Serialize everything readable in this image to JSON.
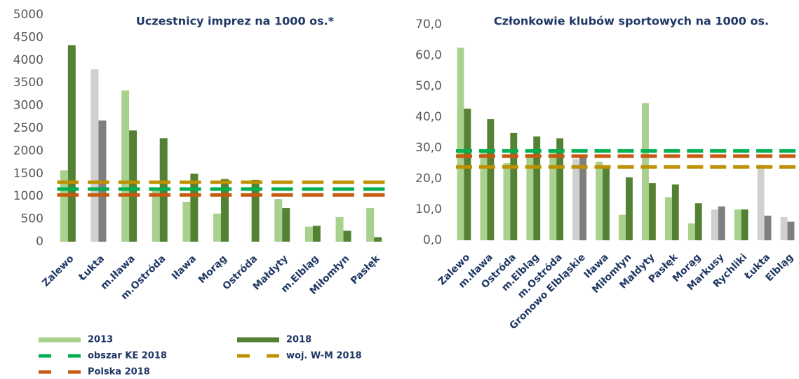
{
  "chart_data": [
    {
      "type": "bar",
      "title": "Uczestnicy imprez na 1000 os.*",
      "categories": [
        "Zalewo",
        "Łukta",
        "m.Iława",
        "m.Ostróda",
        "Iława",
        "Morąg",
        "Ostróda",
        "Małdyty",
        "m.Elbląg",
        "Miłomłyn",
        "Pasłęk"
      ],
      "series": [
        {
          "name": "2013",
          "color": "#a9d18e",
          "values": [
            1570,
            3800,
            3330,
            1170,
            880,
            620,
            null,
            940,
            330,
            540,
            740
          ],
          "colors": [
            "#a9d18e",
            "#d0d0d0",
            "#a9d18e",
            "#a9d18e",
            "#a9d18e",
            "#a9d18e",
            "#a9d18e",
            "#a9d18e",
            "#a9d18e",
            "#a9d18e",
            "#a9d18e"
          ]
        },
        {
          "name": "2018",
          "color": "#548235",
          "values": [
            4330,
            2670,
            2450,
            2280,
            1500,
            1380,
            1360,
            740,
            350,
            240,
            100
          ],
          "colors": [
            "#548235",
            "#7f7f7f",
            "#548235",
            "#548235",
            "#548235",
            "#548235",
            "#548235",
            "#548235",
            "#548235",
            "#548235",
            "#548235"
          ]
        }
      ],
      "reference_lines": [
        {
          "name": "obszar KE 2018",
          "color": "#00b050",
          "value": 1160
        },
        {
          "name": "woj. W-M 2018",
          "color": "#bf9000",
          "value": 1310
        },
        {
          "name": "Polska 2018",
          "color": "#c55a11",
          "value": 1030
        }
      ],
      "ylim": [
        0,
        5000
      ],
      "yticks": [
        0,
        500,
        1000,
        1500,
        2000,
        2500,
        3000,
        3500,
        4000,
        4500,
        5000
      ]
    },
    {
      "type": "bar",
      "title": "Członkowie klubów sportowych na 1000 os.",
      "categories": [
        "Zalewo",
        "m.Iława",
        "Ostróda",
        "m.Elbląg",
        "m.Ostróda",
        "Gronowo Elbląskie",
        "Iława",
        "Miłomłyn",
        "Małdyty",
        "Pasłęk",
        "Morąg",
        "Markusy",
        "Rychliki",
        "Łukta",
        "Elbląg"
      ],
      "series": [
        {
          "name": "2013",
          "color": "#a9d18e",
          "values": [
            62.5,
            29,
            25,
            28,
            28.7,
            26.3,
            25.5,
            8.3,
            44.5,
            14,
            5.5,
            10,
            10,
            24.5,
            7.5
          ],
          "colors": [
            "#a9d18e",
            "#a9d18e",
            "#a9d18e",
            "#a9d18e",
            "#a9d18e",
            "#d0d0d0",
            "#a9d18e",
            "#a9d18e",
            "#a9d18e",
            "#a9d18e",
            "#a9d18e",
            "#d0d0d0",
            "#a9d18e",
            "#d0d0d0",
            "#d0d0d0"
          ]
        },
        {
          "name": "2018",
          "color": "#548235",
          "values": [
            42.7,
            39.3,
            34.8,
            33.7,
            33.1,
            27.6,
            23.5,
            20.4,
            18.6,
            18.1,
            12,
            11,
            10,
            8,
            6
          ],
          "colors": [
            "#548235",
            "#548235",
            "#548235",
            "#548235",
            "#548235",
            "#7f7f7f",
            "#548235",
            "#548235",
            "#548235",
            "#548235",
            "#548235",
            "#7f7f7f",
            "#548235",
            "#7f7f7f",
            "#7f7f7f"
          ]
        }
      ],
      "reference_lines": [
        {
          "name": "obszar KE 2018",
          "color": "#00b050",
          "value": 29
        },
        {
          "name": "woj. W-M 2018",
          "color": "#bf9000",
          "value": 23.8
        },
        {
          "name": "Polska 2018",
          "color": "#c55a11",
          "value": 27.3
        }
      ],
      "ylim": [
        0,
        70
      ],
      "yticks": [
        {
          "value": 0,
          "label": "0,0"
        },
        {
          "value": 10,
          "label": "10,0"
        },
        {
          "value": 20,
          "label": "20,0"
        },
        {
          "value": 30,
          "label": "30,0"
        },
        {
          "value": 40,
          "label": "40,0"
        },
        {
          "value": 50,
          "label": "50,0"
        },
        {
          "value": 60,
          "label": "60,0"
        },
        {
          "value": 70,
          "label": "70,0"
        }
      ]
    }
  ]
}
